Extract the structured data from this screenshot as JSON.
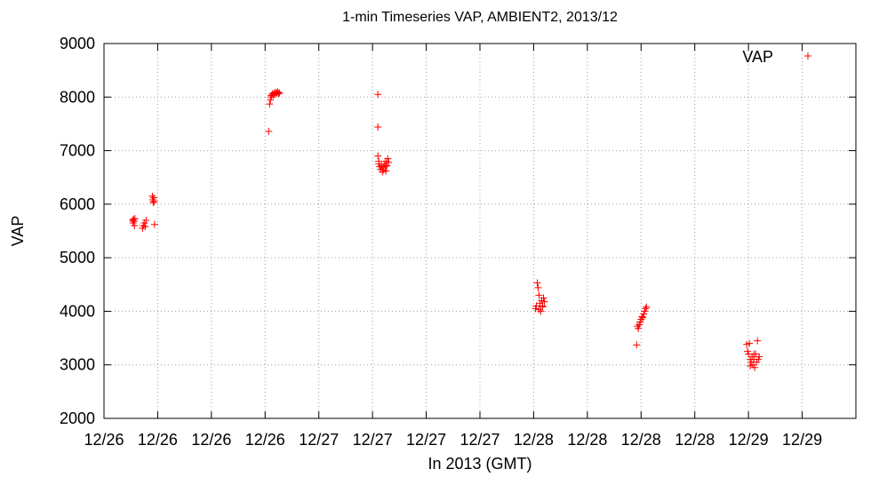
{
  "chart_data": {
    "type": "scatter",
    "title": "1-min Timeseries VAP, AMBIENT2, 2013/12",
    "xlabel": "In 2013 (GMT)",
    "ylabel": "VAP",
    "x_unit": "hours since 12/26 00:00 GMT (x tick labels show calendar day only)",
    "xlim": [
      0,
      84
    ],
    "ylim": [
      2000,
      9000
    ],
    "y_ticks": [
      2000,
      3000,
      4000,
      5000,
      6000,
      7000,
      8000,
      9000
    ],
    "x_ticks": [
      {
        "x": 0,
        "label": "12/26"
      },
      {
        "x": 6,
        "label": "12/26"
      },
      {
        "x": 12,
        "label": "12/26"
      },
      {
        "x": 18,
        "label": "12/26"
      },
      {
        "x": 24,
        "label": "12/27"
      },
      {
        "x": 30,
        "label": "12/27"
      },
      {
        "x": 36,
        "label": "12/27"
      },
      {
        "x": 42,
        "label": "12/27"
      },
      {
        "x": 48,
        "label": "12/28"
      },
      {
        "x": 54,
        "label": "12/28"
      },
      {
        "x": 60,
        "label": "12/28"
      },
      {
        "x": 66,
        "label": "12/28"
      },
      {
        "x": 72,
        "label": "12/29"
      },
      {
        "x": 78,
        "label": "12/29"
      }
    ],
    "grid": true,
    "legend": {
      "position": "top-right"
    },
    "series": [
      {
        "name": "VAP",
        "color": "#ff0000",
        "marker": "plus",
        "points": [
          [
            3.2,
            5700
          ],
          [
            3.25,
            5650
          ],
          [
            3.3,
            5720
          ],
          [
            3.35,
            5680
          ],
          [
            3.4,
            5600
          ],
          [
            3.45,
            5730
          ],
          [
            4.3,
            5550
          ],
          [
            4.4,
            5600
          ],
          [
            4.5,
            5650
          ],
          [
            4.6,
            5580
          ],
          [
            4.7,
            5700
          ],
          [
            5.4,
            6150
          ],
          [
            5.45,
            6080
          ],
          [
            5.5,
            6030
          ],
          [
            5.55,
            6120
          ],
          [
            5.6,
            6050
          ],
          [
            5.65,
            5620
          ],
          [
            18.4,
            7360
          ],
          [
            18.5,
            7870
          ],
          [
            18.6,
            7950
          ],
          [
            18.65,
            8000
          ],
          [
            18.7,
            8030
          ],
          [
            18.8,
            8060
          ],
          [
            18.9,
            8040
          ],
          [
            19.0,
            8080
          ],
          [
            19.1,
            8050
          ],
          [
            19.2,
            8090
          ],
          [
            19.3,
            8070
          ],
          [
            19.4,
            8100
          ],
          [
            19.5,
            8060
          ],
          [
            19.6,
            8080
          ],
          [
            30.6,
            8050
          ],
          [
            30.6,
            7440
          ],
          [
            30.6,
            6900
          ],
          [
            30.7,
            6800
          ],
          [
            30.7,
            6750
          ],
          [
            30.8,
            6700
          ],
          [
            30.9,
            6650
          ],
          [
            31.0,
            6720
          ],
          [
            31.1,
            6600
          ],
          [
            31.2,
            6680
          ],
          [
            31.3,
            6750
          ],
          [
            31.4,
            6700
          ],
          [
            31.5,
            6800
          ],
          [
            31.6,
            6720
          ],
          [
            31.7,
            6850
          ],
          [
            31.8,
            6780
          ],
          [
            31.2,
            6640
          ],
          [
            31.5,
            6620
          ],
          [
            48.2,
            4050
          ],
          [
            48.3,
            4100
          ],
          [
            48.4,
            4530
          ],
          [
            48.5,
            4440
          ],
          [
            48.6,
            4300
          ],
          [
            48.7,
            4150
          ],
          [
            48.8,
            4000
          ],
          [
            48.9,
            4200
          ],
          [
            49.0,
            4100
          ],
          [
            49.1,
            4250
          ],
          [
            49.2,
            4180
          ],
          [
            48.6,
            4030
          ],
          [
            49.0,
            4080
          ],
          [
            59.5,
            3370
          ],
          [
            59.6,
            3720
          ],
          [
            59.7,
            3680
          ],
          [
            59.8,
            3750
          ],
          [
            59.9,
            3800
          ],
          [
            60.0,
            3850
          ],
          [
            60.1,
            3900
          ],
          [
            60.2,
            3880
          ],
          [
            60.3,
            3950
          ],
          [
            60.4,
            4000
          ],
          [
            60.5,
            4050
          ],
          [
            60.6,
            4080
          ],
          [
            71.8,
            3380
          ],
          [
            71.9,
            3250
          ],
          [
            72.0,
            3200
          ],
          [
            72.1,
            3400
          ],
          [
            72.2,
            3100
          ],
          [
            72.3,
            3050
          ],
          [
            72.4,
            3150
          ],
          [
            72.5,
            3000
          ],
          [
            72.6,
            3100
          ],
          [
            72.7,
            2950
          ],
          [
            72.8,
            3200
          ],
          [
            72.9,
            3050
          ],
          [
            73.0,
            3450
          ],
          [
            73.1,
            3100
          ],
          [
            73.2,
            3150
          ],
          [
            72.2,
            2980
          ],
          [
            72.6,
            3200
          ]
        ]
      }
    ]
  }
}
